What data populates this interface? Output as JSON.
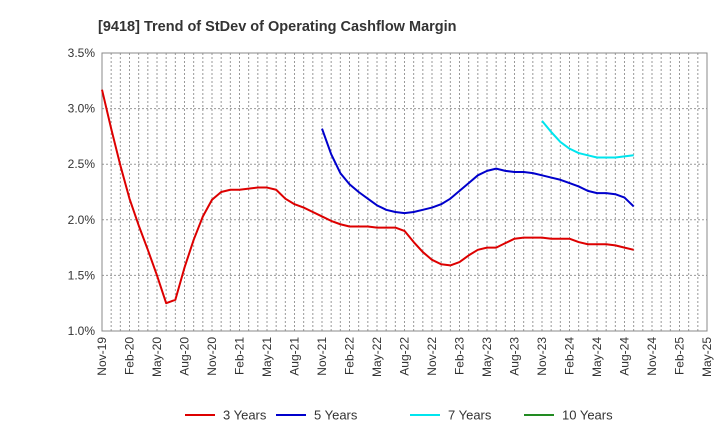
{
  "chart_data": {
    "type": "line",
    "title": "[9418]  Trend of StDev of Operating Cashflow Margin",
    "xlabel": "",
    "ylabel": "",
    "ylim": [
      1.0,
      3.5
    ],
    "y_ticks": [
      "1.0%",
      "1.5%",
      "2.0%",
      "2.5%",
      "3.0%",
      "3.5%"
    ],
    "y_tick_values": [
      1.0,
      1.5,
      2.0,
      2.5,
      3.0,
      3.5
    ],
    "x_start": "2019-11",
    "x_end": "2025-05",
    "x_ticks": [
      "Nov-19",
      "Feb-20",
      "May-20",
      "Aug-20",
      "Nov-20",
      "Feb-21",
      "May-21",
      "Aug-21",
      "Nov-21",
      "Feb-22",
      "May-22",
      "Aug-22",
      "Nov-22",
      "Feb-23",
      "May-23",
      "Aug-23",
      "Nov-23",
      "Feb-24",
      "May-24",
      "Aug-24",
      "Nov-24",
      "Feb-25",
      "May-25"
    ],
    "grid": true,
    "legend_position": "bottom",
    "series": [
      {
        "name": "3 Years",
        "color": "#dd0000",
        "points": [
          [
            "2019-11",
            3.17
          ],
          [
            "2019-12",
            2.82
          ],
          [
            "2020-01",
            2.49
          ],
          [
            "2020-02",
            2.19
          ],
          [
            "2020-03",
            1.95
          ],
          [
            "2020-04",
            1.73
          ],
          [
            "2020-05",
            1.5
          ],
          [
            "2020-06",
            1.25
          ],
          [
            "2020-07",
            1.28
          ],
          [
            "2020-08",
            1.57
          ],
          [
            "2020-09",
            1.82
          ],
          [
            "2020-10",
            2.03
          ],
          [
            "2020-11",
            2.18
          ],
          [
            "2020-12",
            2.25
          ],
          [
            "2021-01",
            2.27
          ],
          [
            "2021-02",
            2.27
          ],
          [
            "2021-03",
            2.28
          ],
          [
            "2021-04",
            2.29
          ],
          [
            "2021-05",
            2.29
          ],
          [
            "2021-06",
            2.27
          ],
          [
            "2021-07",
            2.19
          ],
          [
            "2021-08",
            2.14
          ],
          [
            "2021-09",
            2.11
          ],
          [
            "2021-10",
            2.07
          ],
          [
            "2021-11",
            2.03
          ],
          [
            "2021-12",
            1.99
          ],
          [
            "2022-01",
            1.96
          ],
          [
            "2022-02",
            1.94
          ],
          [
            "2022-03",
            1.94
          ],
          [
            "2022-04",
            1.94
          ],
          [
            "2022-05",
            1.93
          ],
          [
            "2022-06",
            1.93
          ],
          [
            "2022-07",
            1.93
          ],
          [
            "2022-08",
            1.9
          ],
          [
            "2022-09",
            1.8
          ],
          [
            "2022-10",
            1.71
          ],
          [
            "2022-11",
            1.64
          ],
          [
            "2022-12",
            1.6
          ],
          [
            "2023-01",
            1.59
          ],
          [
            "2023-02",
            1.62
          ],
          [
            "2023-03",
            1.68
          ],
          [
            "2023-04",
            1.73
          ],
          [
            "2023-05",
            1.75
          ],
          [
            "2023-06",
            1.75
          ],
          [
            "2023-07",
            1.79
          ],
          [
            "2023-08",
            1.83
          ],
          [
            "2023-09",
            1.84
          ],
          [
            "2023-10",
            1.84
          ],
          [
            "2023-11",
            1.84
          ],
          [
            "2023-12",
            1.83
          ],
          [
            "2024-01",
            1.83
          ],
          [
            "2024-02",
            1.83
          ],
          [
            "2024-03",
            1.8
          ],
          [
            "2024-04",
            1.78
          ],
          [
            "2024-05",
            1.78
          ],
          [
            "2024-06",
            1.78
          ],
          [
            "2024-07",
            1.77
          ],
          [
            "2024-08",
            1.75
          ],
          [
            "2024-09",
            1.73
          ]
        ]
      },
      {
        "name": "5 Years",
        "color": "#0000cc",
        "points": [
          [
            "2021-11",
            2.82
          ],
          [
            "2021-12",
            2.59
          ],
          [
            "2022-01",
            2.42
          ],
          [
            "2022-02",
            2.32
          ],
          [
            "2022-03",
            2.25
          ],
          [
            "2022-04",
            2.19
          ],
          [
            "2022-05",
            2.13
          ],
          [
            "2022-06",
            2.09
          ],
          [
            "2022-07",
            2.07
          ],
          [
            "2022-08",
            2.06
          ],
          [
            "2022-09",
            2.07
          ],
          [
            "2022-10",
            2.09
          ],
          [
            "2022-11",
            2.11
          ],
          [
            "2022-12",
            2.14
          ],
          [
            "2023-01",
            2.19
          ],
          [
            "2023-02",
            2.26
          ],
          [
            "2023-03",
            2.33
          ],
          [
            "2023-04",
            2.4
          ],
          [
            "2023-05",
            2.44
          ],
          [
            "2023-06",
            2.46
          ],
          [
            "2023-07",
            2.44
          ],
          [
            "2023-08",
            2.43
          ],
          [
            "2023-09",
            2.43
          ],
          [
            "2023-10",
            2.42
          ],
          [
            "2023-11",
            2.4
          ],
          [
            "2023-12",
            2.38
          ],
          [
            "2024-01",
            2.36
          ],
          [
            "2024-02",
            2.33
          ],
          [
            "2024-03",
            2.3
          ],
          [
            "2024-04",
            2.26
          ],
          [
            "2024-05",
            2.24
          ],
          [
            "2024-06",
            2.24
          ],
          [
            "2024-07",
            2.23
          ],
          [
            "2024-08",
            2.2
          ],
          [
            "2024-09",
            2.12
          ]
        ]
      },
      {
        "name": "7 Years",
        "color": "#00e5ee",
        "points": [
          [
            "2023-11",
            2.89
          ],
          [
            "2023-12",
            2.79
          ],
          [
            "2024-01",
            2.7
          ],
          [
            "2024-02",
            2.64
          ],
          [
            "2024-03",
            2.6
          ],
          [
            "2024-04",
            2.58
          ],
          [
            "2024-05",
            2.56
          ],
          [
            "2024-06",
            2.56
          ],
          [
            "2024-07",
            2.56
          ],
          [
            "2024-08",
            2.57
          ],
          [
            "2024-09",
            2.58
          ]
        ]
      },
      {
        "name": "10 Years",
        "color": "#228b22",
        "points": []
      }
    ]
  }
}
